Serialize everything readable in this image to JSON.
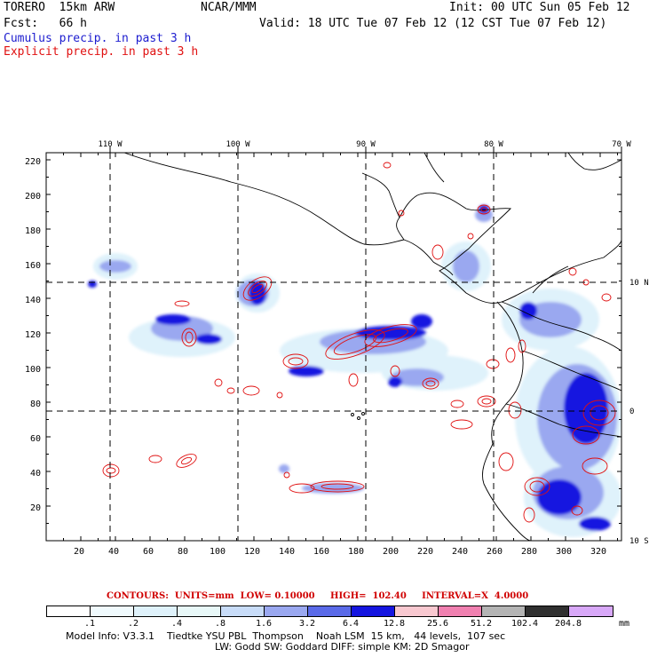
{
  "header": {
    "model": "TORERO  15km ARW",
    "org": "NCAR/MMM",
    "init": "Init: 00 UTC Sun 05 Feb 12",
    "fcst": "Fcst:   66 h",
    "valid": "Valid: 18 UTC Tue 07 Feb 12 (12 CST Tue 07 Feb 12)",
    "cumulus": "Cumulus precip. in past 3 h",
    "explicit": "Explicit precip. in past 3 h"
  },
  "map": {
    "top_lon_labels": [
      "110 W",
      "100 W",
      "90 W",
      "80 W",
      "70 W"
    ],
    "right_lat_labels": [
      "10 N",
      "0",
      "10 S"
    ],
    "y_ticks": [
      "220",
      "200",
      "180",
      "160",
      "140",
      "120",
      "100",
      "80",
      "60",
      "40",
      "20"
    ],
    "x_ticks": [
      "20",
      "40",
      "60",
      "80",
      "100",
      "120",
      "140",
      "160",
      "180",
      "200",
      "220",
      "240",
      "260",
      "280",
      "300",
      "320"
    ]
  },
  "contours": {
    "title": "CONTOURS:  UNITS=mm  LOW= 0.10000     HIGH=  102.40     INTERVAL=X  4.0000"
  },
  "legend": {
    "colors": [
      "#ffffff",
      "#f0fafd",
      "#dff2fb",
      "#e8f8f8",
      "#c8dcf8",
      "#9aa8f0",
      "#5a6ae8",
      "#1515e0",
      "#f8c8d0",
      "#f080b0",
      "#b4b4b4",
      "#303030",
      "#d8a8f8"
    ],
    "labels": [
      ".1",
      ".2",
      ".4",
      ".8",
      "1.6",
      "3.2",
      "6.4",
      "12.8",
      "25.6",
      "51.2",
      "102.4",
      "204.8"
    ],
    "unit": "mm"
  },
  "footer": {
    "line1": "Model Info: V3.3.1    Tiedtke YSU PBL  Thompson    Noah LSM  15 km,   44 levels,  107 sec",
    "line2": "LW: Godd SW: Goddard DIFF: simple KM: 2D Smagor"
  }
}
